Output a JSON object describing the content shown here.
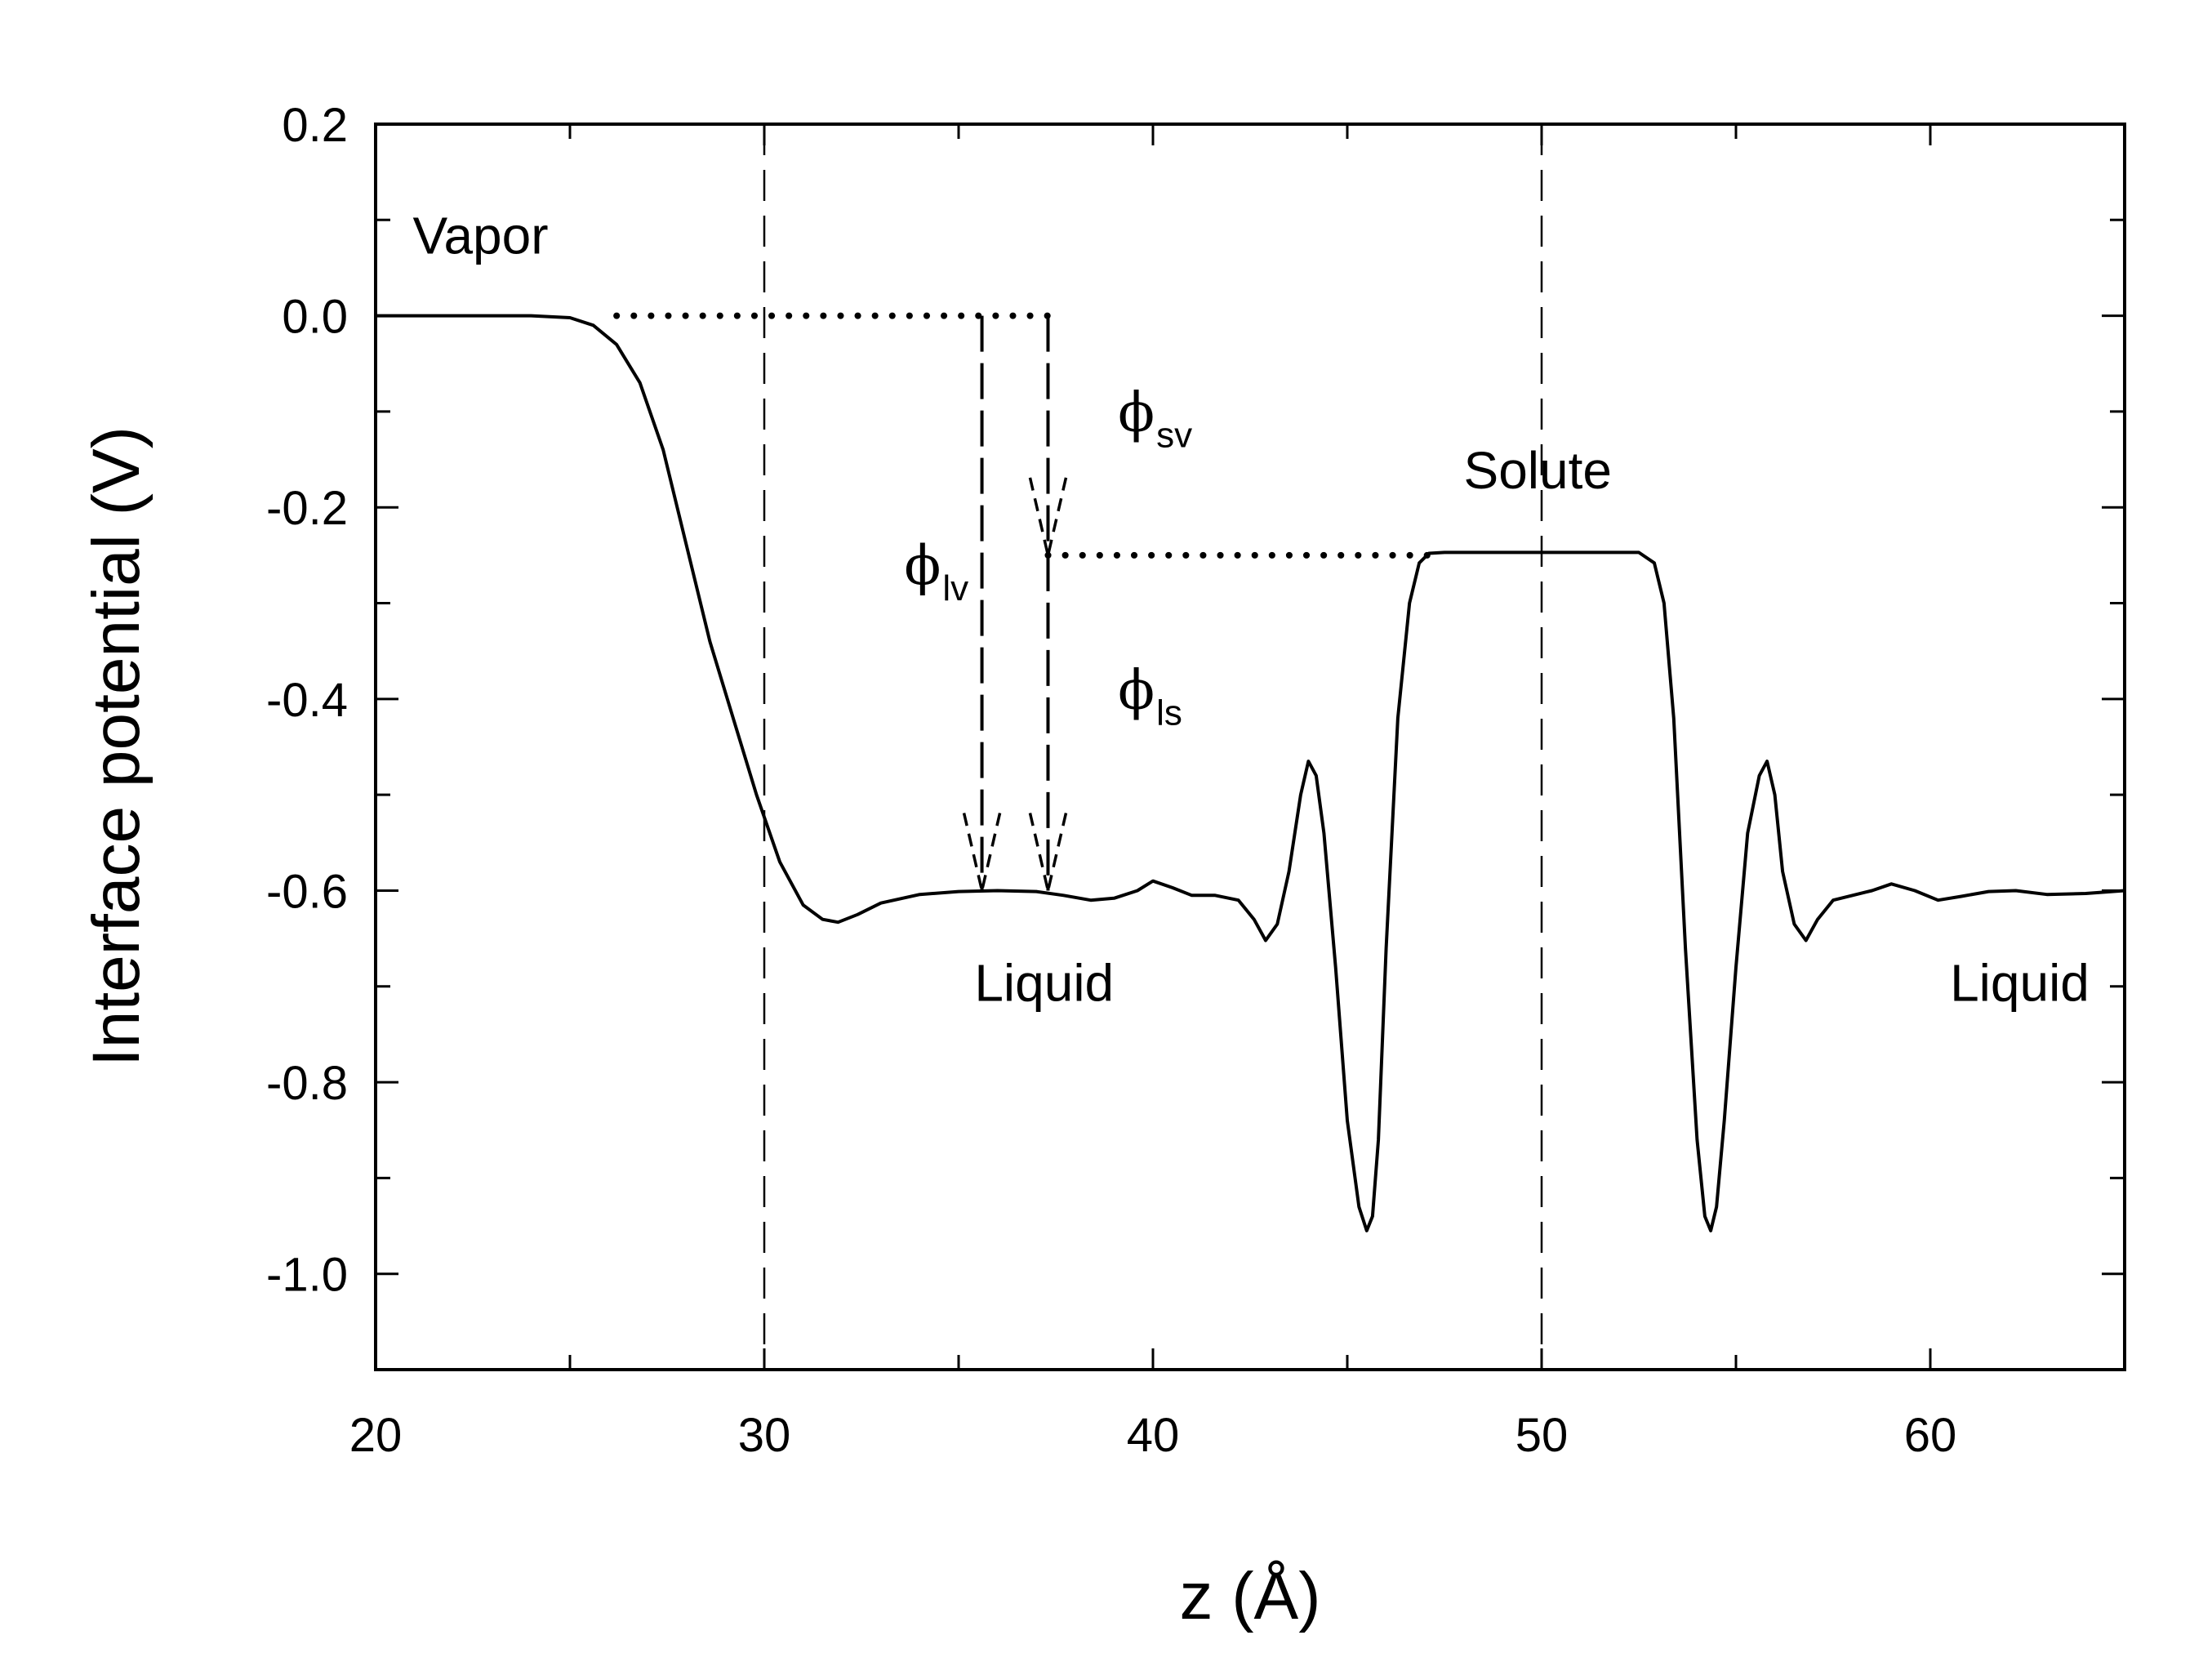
{
  "chart_data": {
    "type": "line",
    "title": "",
    "xlabel": "z (Å)",
    "ylabel": "Interface potential (V)",
    "xlim": [
      20,
      65
    ],
    "ylim": [
      -1.1,
      0.2
    ],
    "x_ticks": [
      20,
      30,
      40,
      50,
      60
    ],
    "x_tick_labels": [
      "20",
      "30",
      "40",
      "50",
      "60"
    ],
    "y_ticks": [
      0.2,
      0.0,
      -0.2,
      -0.4,
      -0.6,
      -0.8,
      -1.0
    ],
    "y_tick_labels": [
      "0.2",
      "0.0",
      "-0.2",
      "-0.4",
      "-0.6",
      "-0.8",
      "-1.0"
    ],
    "grid": false,
    "line_color": "#000000",
    "series": [
      {
        "x": [
          20,
          22,
          24,
          25,
          25.6,
          26.2,
          26.8,
          27.4,
          28.0,
          28.6,
          29.2,
          29.8,
          30.4,
          31.0,
          31.5,
          31.9,
          32.4,
          33.0,
          34.0,
          35.0,
          36.0,
          37.0,
          37.7,
          38.4,
          39.0,
          39.6,
          40.0,
          40.5,
          41.0,
          41.6,
          42.2,
          42.6,
          42.9,
          43.2,
          43.5,
          43.8,
          44.0,
          44.2,
          44.4,
          44.7,
          45.0,
          45.3,
          45.5,
          45.65,
          45.8,
          46.0,
          46.3,
          46.6,
          46.85,
          47.1,
          47.5,
          48.0,
          49.0,
          50.0,
          51.0,
          52.0,
          52.5,
          52.9,
          53.15,
          53.4,
          53.7,
          54.0,
          54.2,
          54.35,
          54.5,
          54.7,
          55.0,
          55.3,
          55.6,
          55.8,
          56.0,
          56.2,
          56.5,
          56.8,
          57.1,
          57.5,
          58.0,
          58.5,
          59.0,
          59.6,
          60.2,
          60.8,
          61.5,
          62.2,
          63.0,
          64.0,
          65.0
        ],
        "y": [
          0.0,
          0.0,
          0.0,
          -0.002,
          -0.01,
          -0.03,
          -0.07,
          -0.14,
          -0.24,
          -0.34,
          -0.42,
          -0.5,
          -0.57,
          -0.615,
          -0.63,
          -0.633,
          -0.625,
          -0.613,
          -0.604,
          -0.601,
          -0.6,
          -0.601,
          -0.605,
          -0.61,
          -0.608,
          -0.6,
          -0.59,
          -0.597,
          -0.605,
          -0.605,
          -0.61,
          -0.63,
          -0.652,
          -0.635,
          -0.58,
          -0.5,
          -0.465,
          -0.48,
          -0.54,
          -0.68,
          -0.84,
          -0.93,
          -0.955,
          -0.94,
          -0.86,
          -0.66,
          -0.42,
          -0.3,
          -0.258,
          -0.248,
          -0.247,
          -0.247,
          -0.247,
          -0.247,
          -0.247,
          -0.247,
          -0.247,
          -0.258,
          -0.3,
          -0.42,
          -0.66,
          -0.86,
          -0.94,
          -0.955,
          -0.93,
          -0.84,
          -0.68,
          -0.54,
          -0.48,
          -0.465,
          -0.5,
          -0.58,
          -0.635,
          -0.652,
          -0.63,
          -0.61,
          -0.605,
          -0.6,
          -0.593,
          -0.6,
          -0.61,
          -0.606,
          -0.601,
          -0.6,
          -0.604,
          -0.603,
          -0.6
        ]
      }
    ],
    "vertical_dashed_lines_x": [
      30,
      50
    ],
    "dotted_levels": [
      {
        "y": 0.0,
        "x_start": 26.2,
        "x_end": 37.3
      },
      {
        "y": -0.25,
        "x_start": 37.3,
        "x_end": 47.2
      }
    ],
    "arrows": [
      {
        "label": "ϕlv",
        "x": 35.6,
        "y_from": 0.0,
        "y_to": -0.6
      },
      {
        "label": "ϕsv",
        "x": 37.3,
        "y_from": 0.0,
        "y_to": -0.25
      },
      {
        "label": "ϕls",
        "x": 37.3,
        "y_from": -0.25,
        "y_to": -0.6
      }
    ],
    "annotations": [
      {
        "text": "Vapor",
        "x": 22.7,
        "y": 0.065
      },
      {
        "text": "Solute",
        "x": 49.9,
        "y": -0.18
      },
      {
        "text": "Liquid",
        "x": 37.2,
        "y": -0.715
      },
      {
        "text": "Liquid",
        "x": 62.3,
        "y": -0.715
      }
    ],
    "phi_labels": [
      {
        "symbol": "ϕ",
        "sub": "lv",
        "x": 33.6,
        "y": -0.28
      },
      {
        "symbol": "ϕ",
        "sub": "sv",
        "x": 39.1,
        "y": -0.12
      },
      {
        "symbol": "ϕ",
        "sub": "ls",
        "x": 39.1,
        "y": -0.41
      }
    ]
  }
}
